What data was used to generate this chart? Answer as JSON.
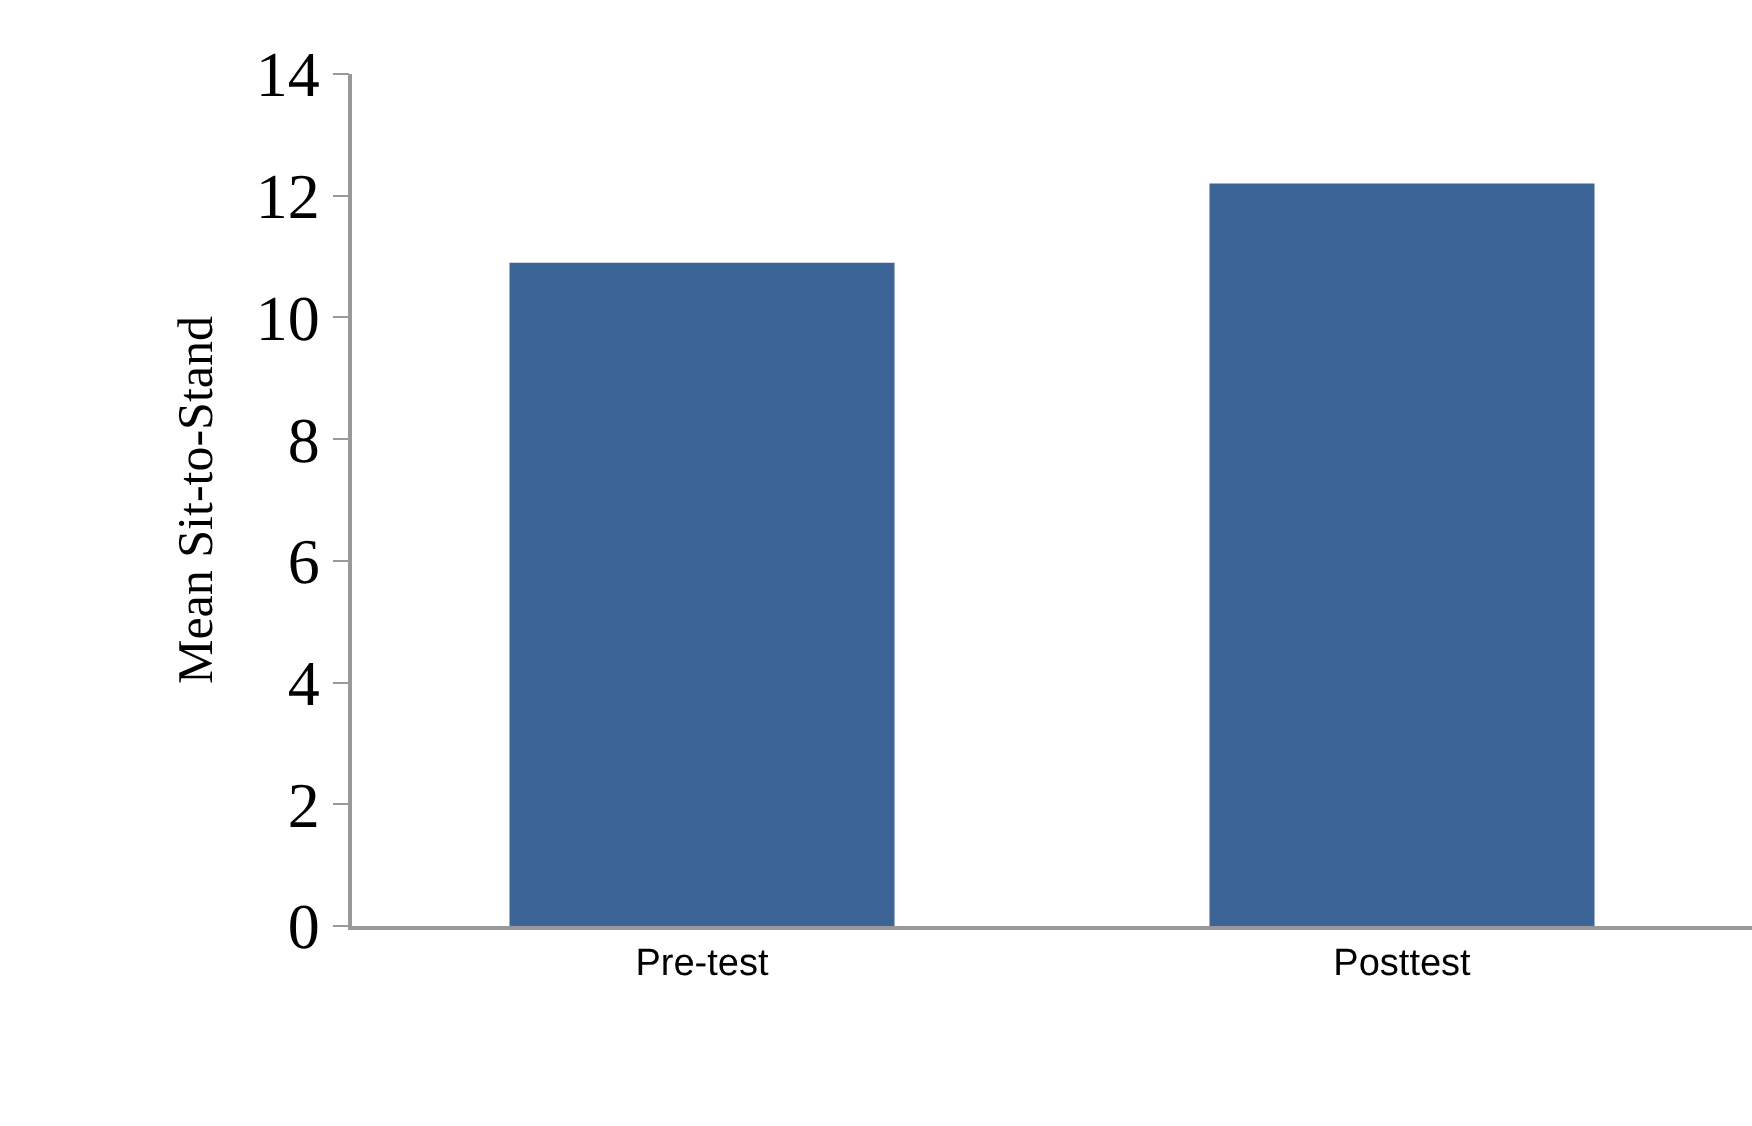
{
  "chart_data": {
    "type": "bar",
    "ylabel": "Mean Sit-to-Stand",
    "categories": [
      "Pre-test",
      "Posttest"
    ],
    "values": [
      10.9,
      12.2
    ],
    "color": "#3c6496",
    "ylim": [
      0,
      14
    ],
    "yticks": [
      0,
      2,
      4,
      6,
      8,
      10,
      12,
      14
    ],
    "grid": false
  }
}
